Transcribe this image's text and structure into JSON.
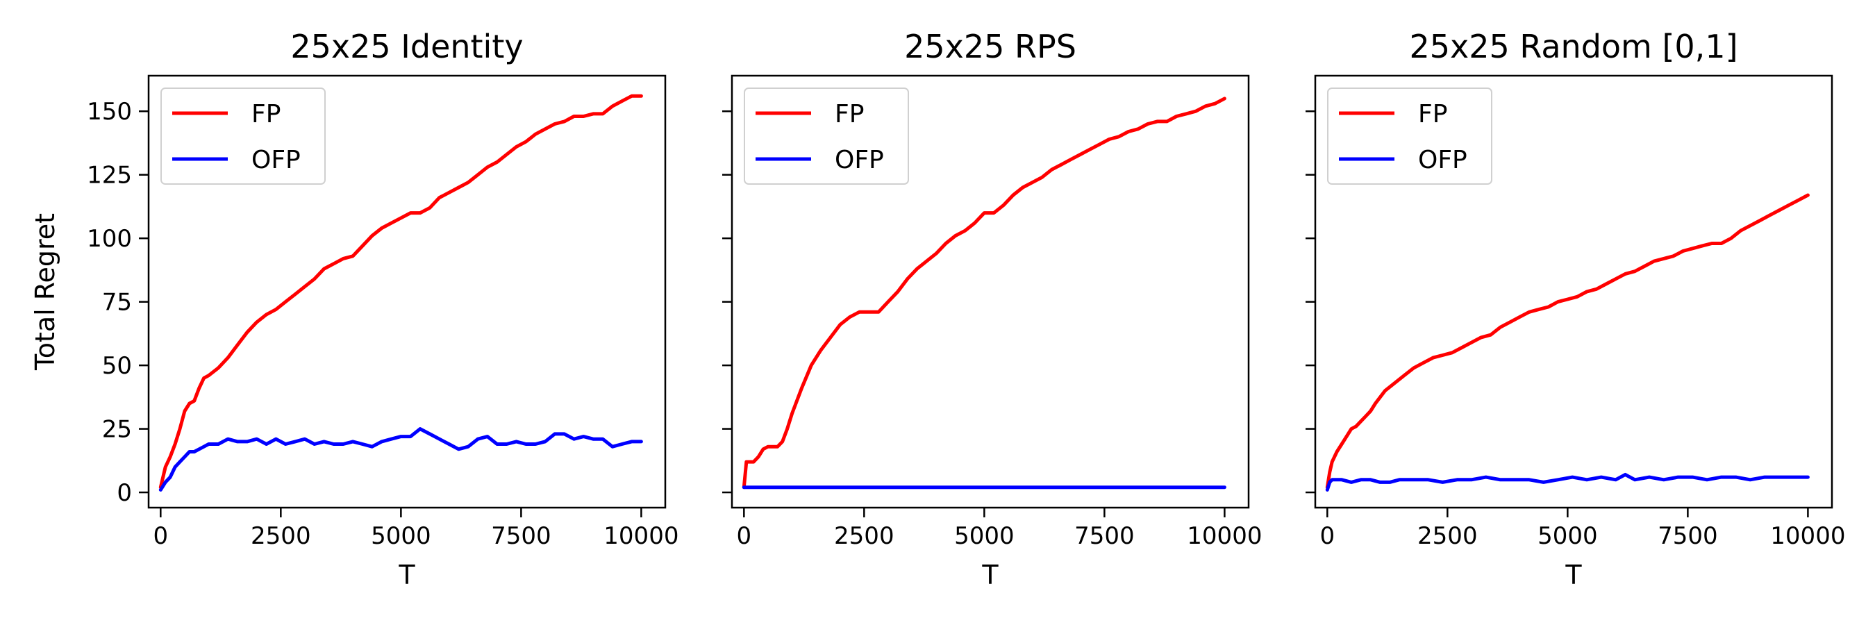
{
  "chart_data": [
    {
      "type": "line",
      "title": "25x25 Identity",
      "xlabel": "T",
      "ylabel": "Total Regret",
      "xlim": [
        -250,
        10500
      ],
      "ylim": [
        -6,
        164
      ],
      "xticks": [
        0,
        2500,
        5000,
        7500,
        10000
      ],
      "yticks": [
        0,
        25,
        50,
        75,
        100,
        125,
        150
      ],
      "legend": "upper-left",
      "grid": false,
      "series": [
        {
          "name": "FP",
          "color": "#ff0000",
          "x": [
            0,
            100,
            200,
            300,
            400,
            500,
            600,
            700,
            800,
            900,
            1000,
            1200,
            1400,
            1600,
            1800,
            2000,
            2200,
            2400,
            2600,
            2800,
            3000,
            3200,
            3400,
            3600,
            3800,
            4000,
            4200,
            4400,
            4600,
            4800,
            5000,
            5200,
            5400,
            5600,
            5800,
            6000,
            6200,
            6400,
            6600,
            6800,
            7000,
            7200,
            7400,
            7600,
            7800,
            8000,
            8200,
            8400,
            8600,
            8800,
            9000,
            9200,
            9400,
            9600,
            9800,
            10000
          ],
          "y": [
            2,
            10,
            14,
            19,
            25,
            32,
            35,
            36,
            41,
            45,
            46,
            49,
            53,
            58,
            63,
            67,
            70,
            72,
            75,
            78,
            81,
            84,
            88,
            90,
            92,
            93,
            97,
            101,
            104,
            106,
            108,
            110,
            110,
            112,
            116,
            118,
            120,
            122,
            125,
            128,
            130,
            133,
            136,
            138,
            141,
            143,
            145,
            146,
            148,
            148,
            149,
            149,
            152,
            154,
            156,
            156
          ]
        },
        {
          "name": "OFP",
          "color": "#0000ff",
          "x": [
            0,
            100,
            200,
            300,
            400,
            500,
            600,
            700,
            800,
            900,
            1000,
            1200,
            1400,
            1600,
            1800,
            2000,
            2200,
            2400,
            2600,
            2800,
            3000,
            3200,
            3400,
            3600,
            3800,
            4000,
            4200,
            4400,
            4600,
            4800,
            5000,
            5200,
            5400,
            5600,
            5800,
            6000,
            6200,
            6400,
            6600,
            6800,
            7000,
            7200,
            7400,
            7600,
            7800,
            8000,
            8200,
            8400,
            8600,
            8800,
            9000,
            9200,
            9400,
            9600,
            9800,
            10000
          ],
          "y": [
            1,
            4,
            6,
            10,
            12,
            14,
            16,
            16,
            17,
            18,
            19,
            19,
            21,
            20,
            20,
            21,
            19,
            21,
            19,
            20,
            21,
            19,
            20,
            19,
            19,
            20,
            19,
            18,
            20,
            21,
            22,
            22,
            25,
            23,
            21,
            19,
            17,
            18,
            21,
            22,
            19,
            19,
            20,
            19,
            19,
            20,
            23,
            23,
            21,
            22,
            21,
            21,
            18,
            19,
            20,
            20
          ]
        }
      ]
    },
    {
      "type": "line",
      "title": "25x25 RPS",
      "xlabel": "T",
      "xlim": [
        -250,
        10500
      ],
      "ylim": [
        -6,
        164
      ],
      "xticks": [
        0,
        2500,
        5000,
        7500,
        10000
      ],
      "yticks": [
        0,
        25,
        50,
        75,
        100,
        125,
        150
      ],
      "legend": "upper-left",
      "grid": false,
      "series": [
        {
          "name": "FP",
          "color": "#ff0000",
          "x": [
            0,
            50,
            100,
            200,
            300,
            400,
            500,
            600,
            700,
            800,
            900,
            1000,
            1200,
            1400,
            1600,
            1800,
            2000,
            2200,
            2400,
            2600,
            2800,
            3000,
            3200,
            3400,
            3600,
            3800,
            4000,
            4200,
            4400,
            4600,
            4800,
            5000,
            5200,
            5400,
            5600,
            5800,
            6000,
            6200,
            6400,
            6600,
            6800,
            7000,
            7200,
            7400,
            7600,
            7800,
            8000,
            8200,
            8400,
            8600,
            8800,
            9000,
            9200,
            9400,
            9600,
            9800,
            10000
          ],
          "y": [
            2,
            12,
            12,
            12,
            14,
            17,
            18,
            18,
            18,
            20,
            25,
            31,
            41,
            50,
            56,
            61,
            66,
            69,
            71,
            71,
            71,
            75,
            79,
            84,
            88,
            91,
            94,
            98,
            101,
            103,
            106,
            110,
            110,
            113,
            117,
            120,
            122,
            124,
            127,
            129,
            131,
            133,
            135,
            137,
            139,
            140,
            142,
            143,
            145,
            146,
            146,
            148,
            149,
            150,
            152,
            153,
            155
          ]
        },
        {
          "name": "OFP",
          "color": "#0000ff",
          "x": [
            0,
            500,
            1000,
            2000,
            3000,
            4000,
            5000,
            6000,
            7000,
            8000,
            9000,
            10000
          ],
          "y": [
            2,
            2,
            2,
            2,
            2,
            2,
            2,
            2,
            2,
            2,
            2,
            2
          ]
        }
      ]
    },
    {
      "type": "line",
      "title": "25x25 Random [0,1]",
      "xlabel": "T",
      "xlim": [
        -250,
        10500
      ],
      "ylim": [
        -6,
        164
      ],
      "xticks": [
        0,
        2500,
        5000,
        7500,
        10000
      ],
      "yticks": [
        0,
        25,
        50,
        75,
        100,
        125,
        150
      ],
      "legend": "upper-left",
      "grid": false,
      "series": [
        {
          "name": "FP",
          "color": "#ff0000",
          "x": [
            0,
            50,
            100,
            200,
            300,
            400,
            500,
            600,
            700,
            800,
            900,
            1000,
            1200,
            1400,
            1600,
            1800,
            2000,
            2200,
            2400,
            2600,
            2800,
            3000,
            3200,
            3400,
            3600,
            3800,
            4000,
            4200,
            4400,
            4600,
            4800,
            5000,
            5200,
            5400,
            5600,
            5800,
            6000,
            6200,
            6400,
            6600,
            6800,
            7000,
            7200,
            7400,
            7600,
            7800,
            8000,
            8200,
            8400,
            8600,
            8800,
            9000,
            9200,
            9400,
            9600,
            9800,
            10000
          ],
          "y": [
            2,
            8,
            12,
            16,
            19,
            22,
            25,
            26,
            28,
            30,
            32,
            35,
            40,
            43,
            46,
            49,
            51,
            53,
            54,
            55,
            57,
            59,
            61,
            62,
            65,
            67,
            69,
            71,
            72,
            73,
            75,
            76,
            77,
            79,
            80,
            82,
            84,
            86,
            87,
            89,
            91,
            92,
            93,
            95,
            96,
            97,
            98,
            98,
            100,
            103,
            105,
            107,
            109,
            111,
            113,
            115,
            117
          ]
        },
        {
          "name": "OFP",
          "color": "#0000ff",
          "x": [
            0,
            50,
            100,
            300,
            500,
            700,
            900,
            1100,
            1300,
            1500,
            1800,
            2100,
            2400,
            2700,
            3000,
            3300,
            3600,
            3900,
            4200,
            4500,
            4800,
            5100,
            5400,
            5700,
            6000,
            6200,
            6400,
            6700,
            7000,
            7300,
            7600,
            7900,
            8200,
            8500,
            8800,
            9100,
            9400,
            9700,
            10000
          ],
          "y": [
            1,
            4,
            5,
            5,
            4,
            5,
            5,
            4,
            4,
            5,
            5,
            5,
            4,
            5,
            5,
            6,
            5,
            5,
            5,
            4,
            5,
            6,
            5,
            6,
            5,
            7,
            5,
            6,
            5,
            6,
            6,
            5,
            6,
            6,
            5,
            6,
            6,
            6,
            6
          ]
        }
      ]
    }
  ]
}
